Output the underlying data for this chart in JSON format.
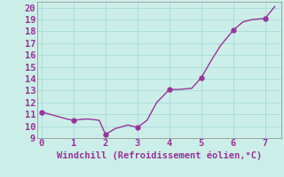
{
  "x": [
    0,
    0.4,
    0.8,
    1.0,
    1.3,
    1.5,
    1.8,
    2.0,
    2.3,
    2.7,
    3.0,
    3.3,
    3.6,
    4.0,
    4.3,
    4.7,
    5.0,
    5.3,
    5.6,
    6.0,
    6.3,
    6.6,
    7.0,
    7.3
  ],
  "y": [
    11.2,
    10.9,
    10.6,
    10.5,
    10.6,
    10.6,
    10.5,
    9.3,
    9.8,
    10.1,
    9.9,
    10.5,
    12.0,
    13.1,
    13.1,
    13.2,
    14.1,
    15.5,
    16.8,
    18.1,
    18.8,
    19.0,
    19.1,
    20.1
  ],
  "marker_x": [
    0,
    1.0,
    2.0,
    3.0,
    4.0,
    5.0,
    6.0,
    7.0
  ],
  "marker_y": [
    11.2,
    10.5,
    9.3,
    9.9,
    13.1,
    14.1,
    18.1,
    19.1
  ],
  "line_color": "#993399",
  "marker_color": "#993399",
  "bg_color": "#cceee8",
  "grid_color": "#aadddd",
  "xlabel": "Windchill (Refroidissement éolien,°C)",
  "xlim": [
    -0.15,
    7.5
  ],
  "ylim": [
    9,
    20.5
  ],
  "yticks": [
    9,
    10,
    11,
    12,
    13,
    14,
    15,
    16,
    17,
    18,
    19,
    20
  ],
  "xticks": [
    0,
    1,
    2,
    3,
    4,
    5,
    6,
    7
  ],
  "xlabel_fontsize": 7.5,
  "tick_fontsize": 7.5,
  "line_width": 1.0,
  "marker_size": 3.5
}
